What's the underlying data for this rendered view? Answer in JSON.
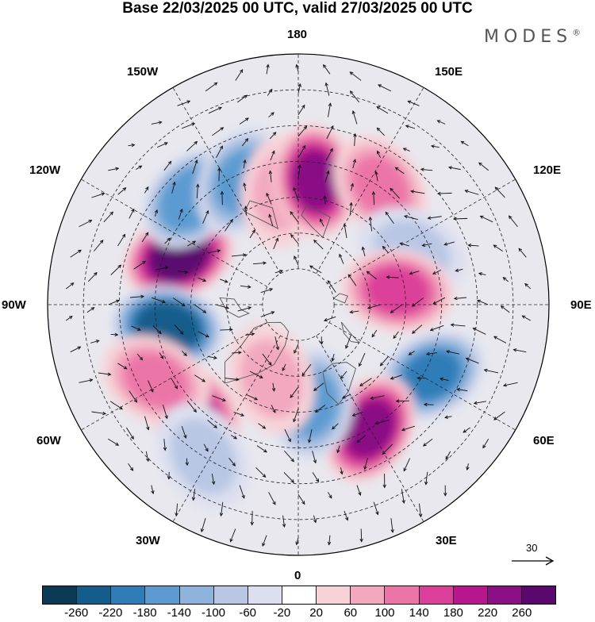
{
  "title": "Base 22/03/2025 00 UTC, valid 27/03/2025 00 UTC",
  "brand": "MODES",
  "brand_mark": "®",
  "longitude_labels": {
    "top": "180",
    "bottom": "0",
    "left": "90W",
    "right": "90E",
    "upper_left_1": "150W",
    "upper_left_2": "120W",
    "upper_right_1": "150E",
    "upper_right_2": "120E",
    "lower_left_1": "60W",
    "lower_left_2": "30W",
    "lower_right_1": "60E",
    "lower_right_2": "30E"
  },
  "wind_reference": "30",
  "colorbar": {
    "colors": [
      "#0b3a56",
      "#135d8c",
      "#2f7db8",
      "#5b9bd1",
      "#8eb4dc",
      "#b9c7e4",
      "#dcdff0",
      "#ffffff",
      "#f7d3d8",
      "#f2a9bf",
      "#ec75a8",
      "#dc3f9a",
      "#b8168c",
      "#8a0f85",
      "#5a086e"
    ],
    "ticks": [
      "-260",
      "-220",
      "-180",
      "-140",
      "-100",
      "-60",
      "-20",
      "20",
      "60",
      "100",
      "140",
      "180",
      "220",
      "260"
    ]
  },
  "anomalies": [
    {
      "lat": 54,
      "lon": -112,
      "value": 260
    },
    {
      "lat": 53,
      "lon": -80,
      "value": -260
    },
    {
      "lat": 48,
      "lon": -135,
      "value": -180
    },
    {
      "lat": 52,
      "lon": -155,
      "value": -150
    },
    {
      "lat": 58,
      "lon": -172,
      "value": 60
    },
    {
      "lat": 55,
      "lon": 172,
      "value": 220
    },
    {
      "lat": 50,
      "lon": 145,
      "value": 120
    },
    {
      "lat": 55,
      "lon": 115,
      "value": -80
    },
    {
      "lat": 62,
      "lon": 98,
      "value": 140
    },
    {
      "lat": 48,
      "lon": 62,
      "value": -200
    },
    {
      "lat": 50,
      "lon": 30,
      "value": 240
    },
    {
      "lat": 62,
      "lon": 8,
      "value": -160
    },
    {
      "lat": 48,
      "lon": -45,
      "value": 200
    },
    {
      "lat": 45,
      "lon": -62,
      "value": 100
    },
    {
      "lat": 40,
      "lon": -32,
      "value": -80
    },
    {
      "lat": 68,
      "lon": -20,
      "value": 60
    }
  ]
}
